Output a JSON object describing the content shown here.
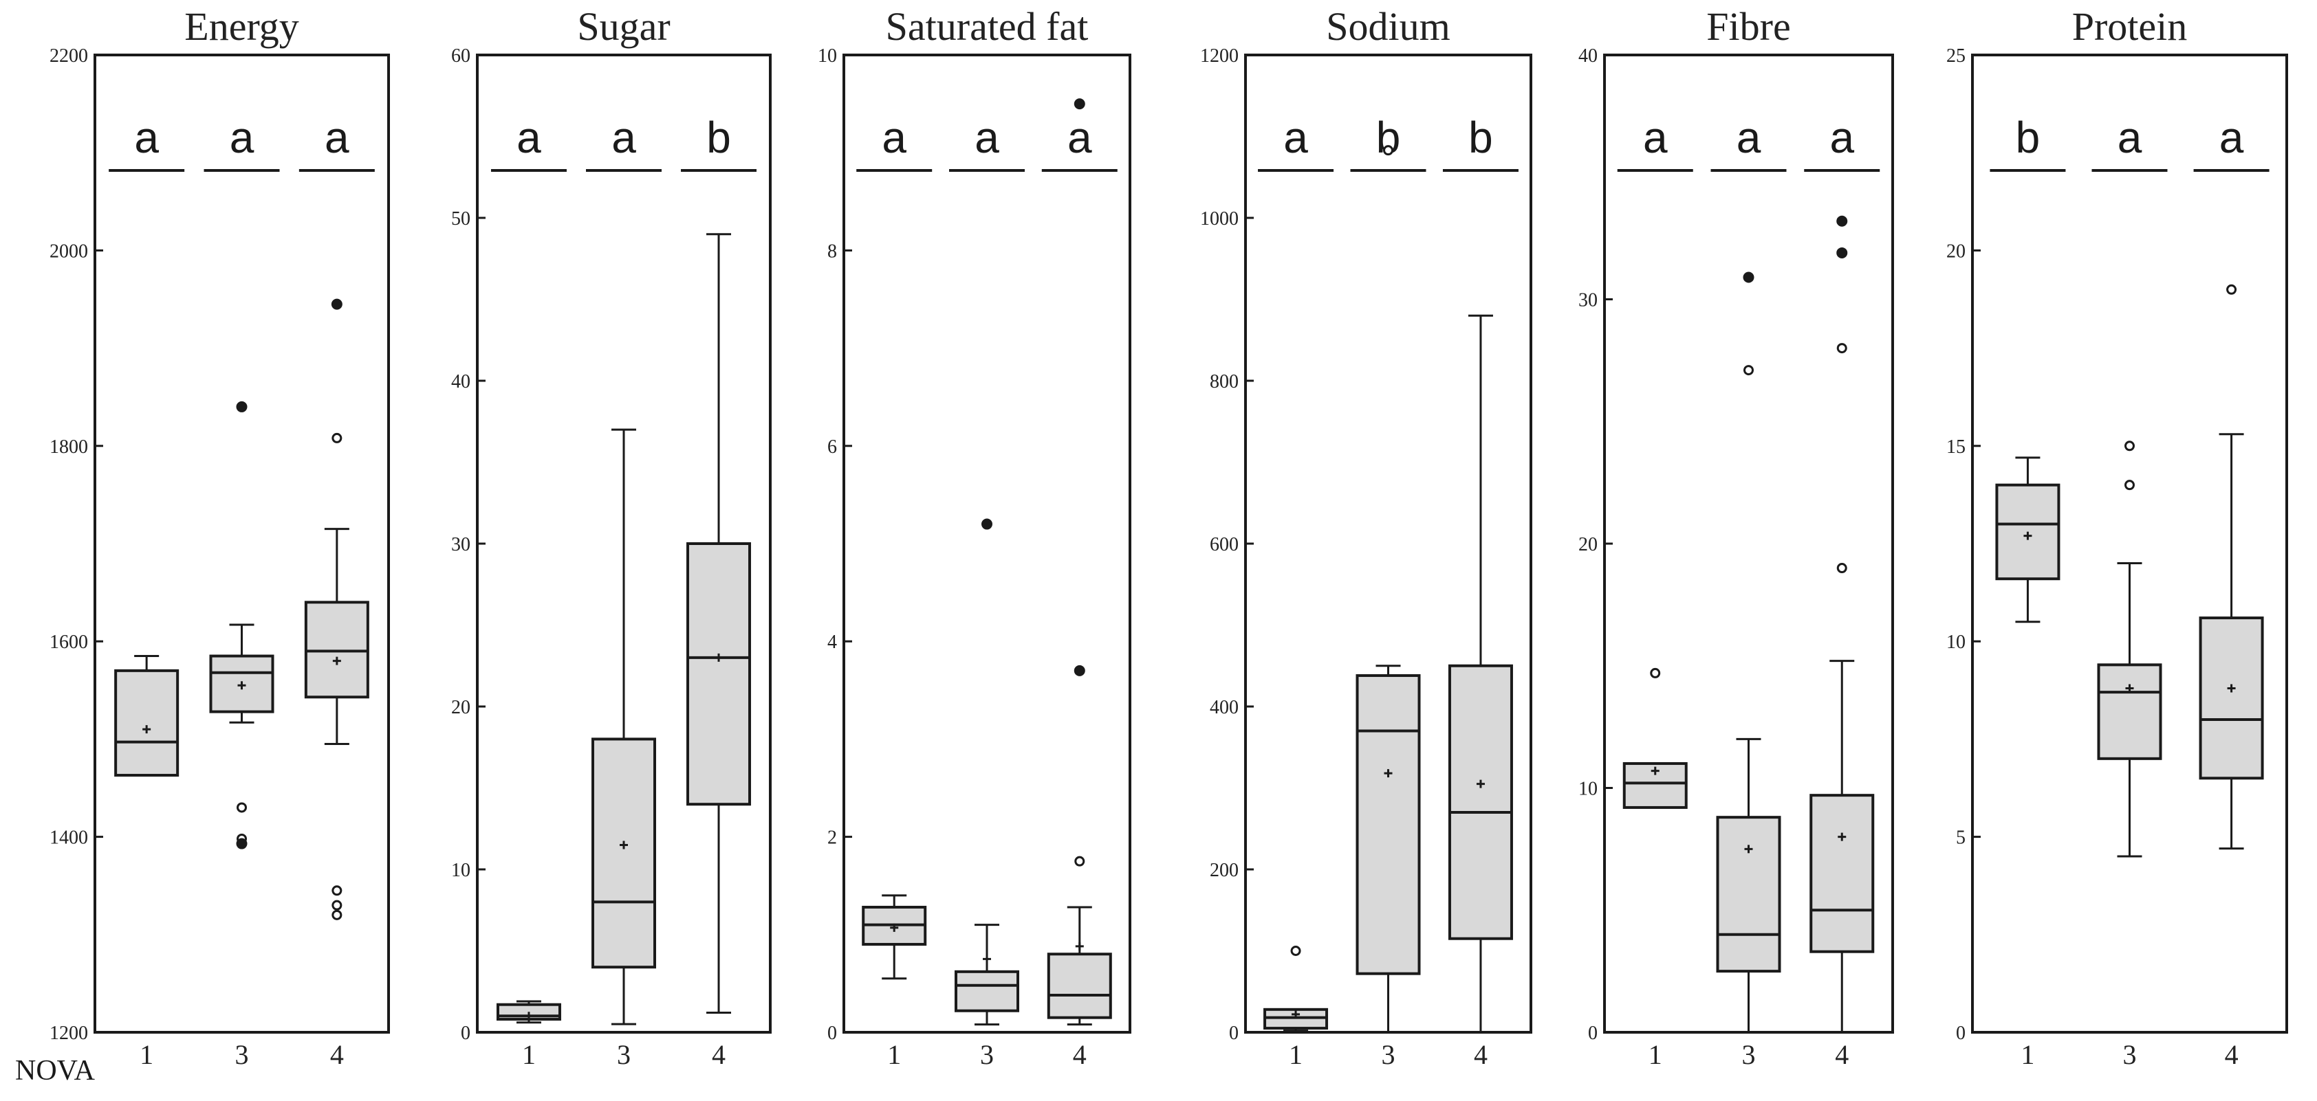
{
  "x_axis_label": "NOVA",
  "chart_data": [
    {
      "type": "box",
      "title": "Energy",
      "categories": [
        "1",
        "3",
        "4"
      ],
      "ylim": [
        1200,
        2200
      ],
      "yticks": [
        1200,
        1400,
        1600,
        1800,
        2000,
        2200
      ],
      "ytick_labels": [
        "1200",
        "1400",
        "1600",
        "1800",
        "2000",
        "2200"
      ],
      "letters": [
        "a",
        "a",
        "a"
      ],
      "boxes": [
        {
          "q1": 1463,
          "median": 1497,
          "q3": 1570,
          "whisker_low": 1463,
          "whisker_high": 1585,
          "mean": 1510,
          "outliers_open": [],
          "outliers_filled": []
        },
        {
          "q1": 1528,
          "median": 1568,
          "q3": 1585,
          "whisker_low": 1517,
          "whisker_high": 1617,
          "mean": 1555,
          "outliers_open": [
            1430,
            1398
          ],
          "outliers_filled": [
            1840,
            1393
          ]
        },
        {
          "q1": 1543,
          "median": 1590,
          "q3": 1640,
          "whisker_low": 1495,
          "whisker_high": 1715,
          "mean": 1580,
          "outliers_open": [
            1808,
            1345,
            1330,
            1320
          ],
          "outliers_filled": [
            1945
          ]
        }
      ]
    },
    {
      "type": "box",
      "title": "Sugar",
      "categories": [
        "1",
        "3",
        "4"
      ],
      "ylim": [
        0,
        60
      ],
      "yticks": [
        0,
        10,
        20,
        30,
        40,
        50,
        60
      ],
      "ytick_labels": [
        "0",
        "10",
        "20",
        "30",
        "40",
        "50",
        "60"
      ],
      "letters": [
        "a",
        "a",
        "b"
      ],
      "boxes": [
        {
          "q1": 0.8,
          "median": 1.0,
          "q3": 1.7,
          "whisker_low": 0.6,
          "whisker_high": 1.9,
          "mean": 1.0,
          "outliers_open": [],
          "outliers_filled": []
        },
        {
          "q1": 4.0,
          "median": 8.0,
          "q3": 18.0,
          "whisker_low": 0.5,
          "whisker_high": 37.0,
          "mean": 11.5,
          "outliers_open": [],
          "outliers_filled": []
        },
        {
          "q1": 14.0,
          "median": 23.0,
          "q3": 30.0,
          "whisker_low": 1.2,
          "whisker_high": 49.0,
          "mean": 23.0,
          "outliers_open": [],
          "outliers_filled": []
        }
      ]
    },
    {
      "type": "box",
      "title": "Saturated fat",
      "categories": [
        "1",
        "3",
        "4"
      ],
      "ylim": [
        0,
        10
      ],
      "yticks": [
        0,
        2,
        4,
        6,
        8,
        10
      ],
      "ytick_labels": [
        "0",
        "2",
        "4",
        "6",
        "8",
        "10"
      ],
      "letters": [
        "a",
        "a",
        "a"
      ],
      "boxes": [
        {
          "q1": 0.9,
          "median": 1.1,
          "q3": 1.28,
          "whisker_low": 0.55,
          "whisker_high": 1.4,
          "mean": 1.07,
          "outliers_open": [],
          "outliers_filled": []
        },
        {
          "q1": 0.22,
          "median": 0.48,
          "q3": 0.62,
          "whisker_low": 0.08,
          "whisker_high": 1.1,
          "mean": 0.75,
          "outliers_open": [],
          "outliers_filled": [
            5.2
          ]
        },
        {
          "q1": 0.15,
          "median": 0.38,
          "q3": 0.8,
          "whisker_low": 0.08,
          "whisker_high": 1.28,
          "mean": 0.88,
          "outliers_open": [
            1.75
          ],
          "outliers_filled": [
            9.5,
            3.7
          ]
        }
      ]
    },
    {
      "type": "box",
      "title": "Sodium",
      "categories": [
        "1",
        "3",
        "4"
      ],
      "ylim": [
        0,
        1200
      ],
      "yticks": [
        0,
        200,
        400,
        600,
        800,
        1000,
        1200
      ],
      "ytick_labels": [
        "0",
        "200",
        "400",
        "600",
        "800",
        "1000",
        "1200"
      ],
      "letters": [
        "a",
        "b",
        "b"
      ],
      "boxes": [
        {
          "q1": 5,
          "median": 18,
          "q3": 28,
          "whisker_low": 2,
          "whisker_high": 28,
          "mean": 22,
          "outliers_open": [
            100
          ],
          "outliers_filled": []
        },
        {
          "q1": 72,
          "median": 370,
          "q3": 438,
          "whisker_low": 0,
          "whisker_high": 450,
          "mean": 318,
          "outliers_open": [
            1083
          ],
          "outliers_filled": []
        },
        {
          "q1": 115,
          "median": 270,
          "q3": 450,
          "whisker_low": 0,
          "whisker_high": 880,
          "mean": 305,
          "outliers_open": [],
          "outliers_filled": []
        }
      ]
    },
    {
      "type": "box",
      "title": "Fibre",
      "categories": [
        "1",
        "3",
        "4"
      ],
      "ylim": [
        0,
        40
      ],
      "yticks": [
        0,
        10,
        20,
        30,
        40
      ],
      "ytick_labels": [
        "0",
        "10",
        "20",
        "30",
        "40"
      ],
      "letters": [
        "a",
        "a",
        "a"
      ],
      "boxes": [
        {
          "q1": 9.2,
          "median": 10.2,
          "q3": 11.0,
          "whisker_low": 9.2,
          "whisker_high": 11.0,
          "mean": 10.7,
          "outliers_open": [
            14.7
          ],
          "outliers_filled": []
        },
        {
          "q1": 2.5,
          "median": 4.0,
          "q3": 8.8,
          "whisker_low": 0,
          "whisker_high": 12.0,
          "mean": 7.5,
          "outliers_open": [
            27.1
          ],
          "outliers_filled": [
            30.9
          ]
        },
        {
          "q1": 3.3,
          "median": 5.0,
          "q3": 9.7,
          "whisker_low": 0,
          "whisker_high": 15.2,
          "mean": 8.0,
          "outliers_open": [
            28.0,
            19.0
          ],
          "outliers_filled": [
            33.2,
            31.9
          ]
        }
      ]
    },
    {
      "type": "box",
      "title": "Protein",
      "categories": [
        "1",
        "3",
        "4"
      ],
      "ylim": [
        0,
        25
      ],
      "yticks": [
        0,
        5,
        10,
        15,
        20,
        25
      ],
      "ytick_labels": [
        "0",
        "5",
        "10",
        "15",
        "20",
        "25"
      ],
      "letters": [
        "b",
        "a",
        "a"
      ],
      "boxes": [
        {
          "q1": 11.6,
          "median": 13.0,
          "q3": 14.0,
          "whisker_low": 10.5,
          "whisker_high": 14.7,
          "mean": 12.7,
          "outliers_open": [],
          "outliers_filled": []
        },
        {
          "q1": 7.0,
          "median": 8.7,
          "q3": 9.4,
          "whisker_low": 4.5,
          "whisker_high": 12.0,
          "mean": 8.8,
          "outliers_open": [
            15.0,
            14.0
          ],
          "outliers_filled": []
        },
        {
          "q1": 6.5,
          "median": 8.0,
          "q3": 10.6,
          "whisker_low": 4.7,
          "whisker_high": 15.3,
          "mean": 8.8,
          "outliers_open": [
            19.0
          ],
          "outliers_filled": []
        }
      ]
    }
  ]
}
